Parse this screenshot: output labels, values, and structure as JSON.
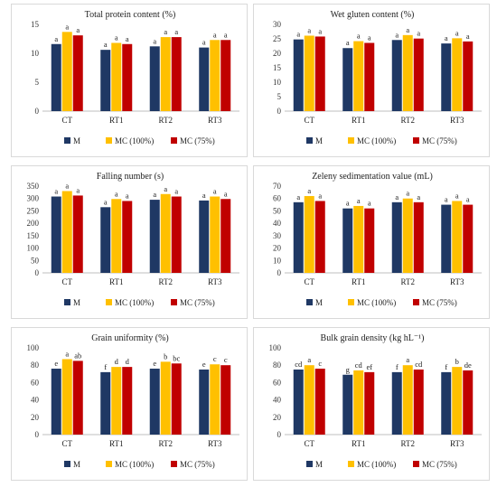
{
  "legend": [
    "M",
    "MC (100%)",
    "MC (75%)"
  ],
  "colors": [
    "#1f3864",
    "#ffc000",
    "#c00000"
  ],
  "chart_data": [
    {
      "type": "bar",
      "title": "Total protein content (%)",
      "categories": [
        "CT",
        "RT1",
        "RT2",
        "RT3"
      ],
      "ylim": [
        0,
        15
      ],
      "yticks": [
        0,
        5,
        10,
        15
      ],
      "series": [
        {
          "name": "M",
          "values": [
            11.6,
            10.6,
            11.2,
            11.0
          ]
        },
        {
          "name": "MC (100%)",
          "values": [
            13.7,
            11.8,
            12.8,
            12.3
          ]
        },
        {
          "name": "MC (75%)",
          "values": [
            13.1,
            11.6,
            12.8,
            12.3
          ]
        }
      ],
      "labels": [
        [
          "a",
          "a",
          "a"
        ],
        [
          "a",
          "a",
          "a"
        ],
        [
          "a",
          "a",
          "a"
        ],
        [
          "a",
          "a",
          "a"
        ]
      ]
    },
    {
      "type": "bar",
      "title": "Wet gluten content (%)",
      "categories": [
        "CT",
        "RT1",
        "RT2",
        "RT3"
      ],
      "ylim": [
        0,
        30
      ],
      "yticks": [
        0,
        5,
        10,
        15,
        20,
        25,
        30
      ],
      "series": [
        {
          "name": "M",
          "values": [
            24.8,
            21.8,
            24.6,
            23.4
          ]
        },
        {
          "name": "MC (100%)",
          "values": [
            26.1,
            24.2,
            26.3,
            25.2
          ]
        },
        {
          "name": "MC (75%)",
          "values": [
            25.8,
            23.6,
            25.1,
            24.1
          ]
        }
      ],
      "labels": [
        [
          "a",
          "a",
          "a"
        ],
        [
          "a",
          "a",
          "a"
        ],
        [
          "a",
          "a",
          "a"
        ],
        [
          "a",
          "a",
          "a"
        ]
      ]
    },
    {
      "type": "bar",
      "title": "Falling number (s)",
      "categories": [
        "CT",
        "RT1",
        "RT2",
        "RT3"
      ],
      "ylim": [
        0,
        350
      ],
      "yticks": [
        0,
        50,
        100,
        150,
        200,
        250,
        300,
        350
      ],
      "series": [
        {
          "name": "M",
          "values": [
            308,
            265,
            295,
            292
          ]
        },
        {
          "name": "MC (100%)",
          "values": [
            330,
            298,
            318,
            308
          ]
        },
        {
          "name": "MC (75%)",
          "values": [
            312,
            290,
            308,
            298
          ]
        }
      ],
      "labels": [
        [
          "a",
          "a",
          "a"
        ],
        [
          "a",
          "a",
          "a"
        ],
        [
          "a",
          "a",
          "a"
        ],
        [
          "a",
          "a",
          "a"
        ]
      ]
    },
    {
      "type": "bar",
      "title": "Zeleny sedimentation value (mL)",
      "categories": [
        "CT",
        "RT1",
        "RT2",
        "RT3"
      ],
      "ylim": [
        0,
        70
      ],
      "yticks": [
        0,
        10,
        20,
        30,
        40,
        50,
        60,
        70
      ],
      "series": [
        {
          "name": "M",
          "values": [
            57,
            52,
            57,
            55
          ]
        },
        {
          "name": "MC (100%)",
          "values": [
            62,
            54,
            60,
            58
          ]
        },
        {
          "name": "MC (75%)",
          "values": [
            58,
            52,
            57,
            55
          ]
        }
      ],
      "labels": [
        [
          "a",
          "a",
          "a"
        ],
        [
          "a",
          "a",
          "a"
        ],
        [
          "a",
          "a",
          "a"
        ],
        [
          "a",
          "a",
          "a"
        ]
      ]
    },
    {
      "type": "bar",
      "title": "Grain uniformity (%)",
      "categories": [
        "CT",
        "RT1",
        "RT2",
        "RT3"
      ],
      "ylim": [
        0,
        100
      ],
      "yticks": [
        0,
        20,
        40,
        60,
        80,
        100
      ],
      "series": [
        {
          "name": "M",
          "values": [
            76,
            72,
            76,
            75
          ]
        },
        {
          "name": "MC (100%)",
          "values": [
            87,
            78,
            84,
            81
          ]
        },
        {
          "name": "MC (75%)",
          "values": [
            85,
            78,
            82,
            80
          ]
        }
      ],
      "labels": [
        [
          "e",
          "a",
          "ab"
        ],
        [
          "f",
          "d",
          "d"
        ],
        [
          "e",
          "b",
          "bc"
        ],
        [
          "e",
          "c",
          "c"
        ]
      ]
    },
    {
      "type": "bar",
      "title": "Bulk grain density (kg hL⁻¹)",
      "categories": [
        "CT",
        "RT1",
        "RT2",
        "RT3"
      ],
      "ylim": [
        0,
        100
      ],
      "yticks": [
        0,
        20,
        40,
        60,
        80,
        100
      ],
      "series": [
        {
          "name": "M",
          "values": [
            75,
            69,
            72,
            72
          ]
        },
        {
          "name": "MC (100%)",
          "values": [
            80,
            74,
            80,
            78
          ]
        },
        {
          "name": "MC (75%)",
          "values": [
            76,
            72,
            75,
            74
          ]
        }
      ],
      "labels": [
        [
          "cd",
          "a",
          "c"
        ],
        [
          "g",
          "cd",
          "ef"
        ],
        [
          "f",
          "a",
          "cd"
        ],
        [
          "f",
          "b",
          "de"
        ]
      ]
    }
  ]
}
